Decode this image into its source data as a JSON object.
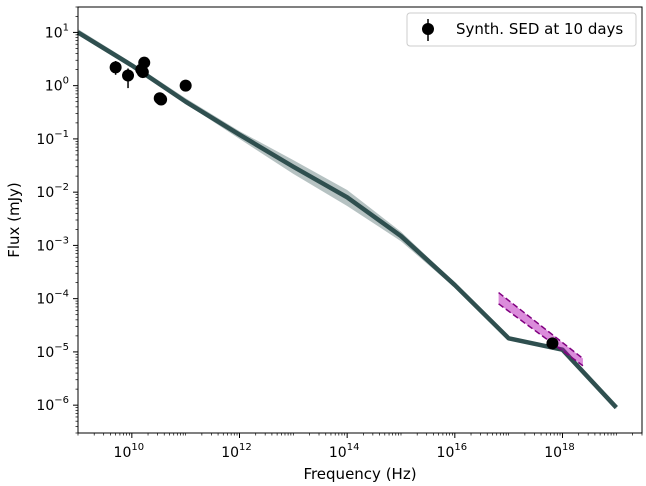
{
  "chart_data": {
    "type": "scatter",
    "title": "",
    "xlabel": "Frequency (Hz)",
    "ylabel": "Flux (mJy)",
    "x_scale": "log",
    "y_scale": "log",
    "xlim": [
      1000000000.0,
      3e+19
    ],
    "ylim": [
      3e-07,
      30
    ],
    "grid": false,
    "legend_placement": "top-right",
    "x_ticks": [
      {
        "value": 10000000000.0,
        "base": "10",
        "exp": "10"
      },
      {
        "value": 1000000000000.0,
        "base": "10",
        "exp": "12"
      },
      {
        "value": 100000000000000.0,
        "base": "10",
        "exp": "14"
      },
      {
        "value": 1e+16,
        "base": "10",
        "exp": "16"
      },
      {
        "value": 1e+18,
        "base": "10",
        "exp": "18"
      }
    ],
    "y_ticks": [
      {
        "value": 10,
        "base": "10",
        "exp": "1"
      },
      {
        "value": 1,
        "base": "10",
        "exp": "0"
      },
      {
        "value": 0.1,
        "base": "10",
        "exp": "−1"
      },
      {
        "value": 0.01,
        "base": "10",
        "exp": "−2"
      },
      {
        "value": 0.001,
        "base": "10",
        "exp": "−3"
      },
      {
        "value": 0.0001,
        "base": "10",
        "exp": "−4"
      },
      {
        "value": 1e-05,
        "base": "10",
        "exp": "−5"
      },
      {
        "value": 1e-06,
        "base": "10",
        "exp": "−6"
      }
    ],
    "series": [
      {
        "name": "Synth. SED at 10 days",
        "kind": "points",
        "color": "#000000",
        "points": [
          {
            "x": 5000000000.0,
            "y": 2.2,
            "ylo": 1.6,
            "yhi": 2.9
          },
          {
            "x": 8500000000.0,
            "y": 1.55,
            "ylo": 0.9,
            "yhi": 2.1
          },
          {
            "x": 15000000000.0,
            "y": 2.0,
            "ylo": 1.8,
            "yhi": 2.2
          },
          {
            "x": 16000000000.0,
            "y": 1.8,
            "ylo": 1.6,
            "yhi": 2.0
          },
          {
            "x": 17000000000.0,
            "y": 2.7,
            "ylo": 2.4,
            "yhi": 3.0
          },
          {
            "x": 33000000000.0,
            "y": 0.58,
            "ylo": 0.52,
            "yhi": 0.65
          },
          {
            "x": 35000000000.0,
            "y": 0.55,
            "ylo": 0.5,
            "yhi": 0.6
          },
          {
            "x": 100000000000.0,
            "y": 1.0,
            "ylo": 0.92,
            "yhi": 1.08
          },
          {
            "x": 6.5e+17,
            "y": 1.45e-05,
            "ylo": 1.3e-05,
            "yhi": 1.6e-05
          }
        ]
      }
    ],
    "model_band": {
      "color": "#2f4f4f",
      "x": [
        1000000000.0,
        10000000000.0,
        100000000000.0,
        1000000000000.0,
        10000000000000.0,
        100000000000000.0,
        1000000000000000.0,
        1e+16,
        1e+17,
        1e+18,
        1e+19
      ],
      "y_median": [
        10,
        2.4,
        0.5,
        0.12,
        0.03,
        0.008,
        0.0015,
        0.00018,
        1.8e-05,
        1.1e-05,
        9e-07
      ],
      "y_lower": [
        9,
        2.2,
        0.46,
        0.1,
        0.022,
        0.0055,
        0.0012,
        0.00016,
        1.7e-05,
        1.08e-05,
        8.5e-07
      ],
      "y_upper": [
        11.5,
        2.7,
        0.58,
        0.14,
        0.04,
        0.011,
        0.0018,
        0.0002,
        1.95e-05,
        1.12e-05,
        9.5e-07
      ]
    },
    "xray_band": {
      "color": "#b000b0",
      "x": [
        6.5e+16,
        2.4e+18
      ],
      "y_upper": [
        0.00013,
        7.5e-06
      ],
      "y_lower": [
        8e-05,
        5.5e-06
      ]
    }
  }
}
